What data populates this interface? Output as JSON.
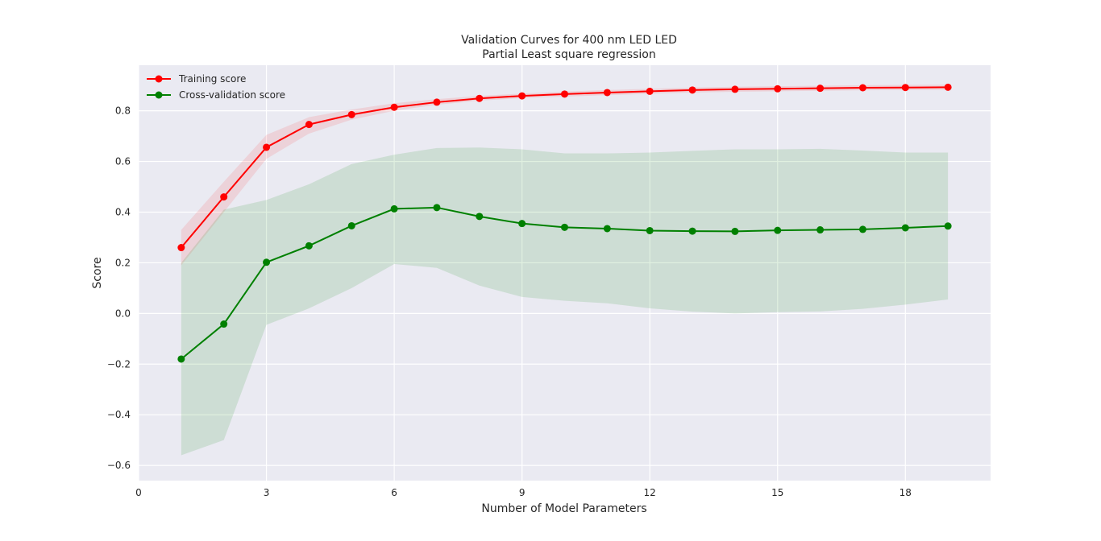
{
  "chart_data": {
    "type": "line",
    "title": "Validation Curves for 400 nm LED LED",
    "subtitle": "Partial Least square regression",
    "xlabel": "Number of Model Parameters",
    "ylabel": "Score",
    "xlim": [
      0,
      20
    ],
    "ylim": [
      -0.66,
      0.98
    ],
    "xticks": [
      0,
      3,
      6,
      9,
      12,
      15,
      18
    ],
    "yticks": [
      -0.6,
      -0.4,
      -0.2,
      0.0,
      0.2,
      0.4,
      0.6,
      0.8
    ],
    "ytick_labels": [
      "−0.6",
      "−0.4",
      "−0.2",
      "0.0",
      "0.2",
      "0.4",
      "0.6",
      "0.8"
    ],
    "grid": true,
    "legend_position": "top-left",
    "x": [
      1,
      2,
      3,
      4,
      5,
      6,
      7,
      8,
      9,
      10,
      11,
      12,
      13,
      14,
      15,
      16,
      17,
      18,
      19
    ],
    "series": [
      {
        "name": "Training score",
        "color": "#ff0000",
        "values": [
          0.26,
          0.46,
          0.656,
          0.746,
          0.785,
          0.814,
          0.834,
          0.849,
          0.859,
          0.866,
          0.872,
          0.877,
          0.882,
          0.885,
          0.887,
          0.889,
          0.891,
          0.892,
          0.893
        ],
        "lower": [
          0.19,
          0.4,
          0.61,
          0.71,
          0.765,
          0.8,
          0.824,
          0.84,
          0.85,
          0.856,
          0.862,
          0.867,
          0.872,
          0.875,
          0.877,
          0.879,
          0.881,
          0.882,
          0.883
        ],
        "upper": [
          0.33,
          0.52,
          0.705,
          0.775,
          0.805,
          0.83,
          0.846,
          0.859,
          0.868,
          0.876,
          0.882,
          0.887,
          0.892,
          0.895,
          0.897,
          0.899,
          0.901,
          0.902,
          0.903
        ]
      },
      {
        "name": "Cross-validation score",
        "color": "#008000",
        "values": [
          -0.18,
          -0.042,
          0.202,
          0.267,
          0.346,
          0.413,
          0.418,
          0.383,
          0.355,
          0.34,
          0.335,
          0.327,
          0.325,
          0.324,
          0.328,
          0.33,
          0.332,
          0.338,
          0.345
        ],
        "lower": [
          -0.56,
          -0.5,
          -0.045,
          0.02,
          0.1,
          0.195,
          0.18,
          0.11,
          0.065,
          0.05,
          0.04,
          0.02,
          0.007,
          0.0,
          0.005,
          0.008,
          0.018,
          0.035,
          0.055
        ],
        "upper": [
          0.2,
          0.41,
          0.448,
          0.51,
          0.59,
          0.627,
          0.653,
          0.655,
          0.648,
          0.632,
          0.632,
          0.635,
          0.642,
          0.648,
          0.648,
          0.65,
          0.643,
          0.635,
          0.635
        ]
      }
    ]
  }
}
